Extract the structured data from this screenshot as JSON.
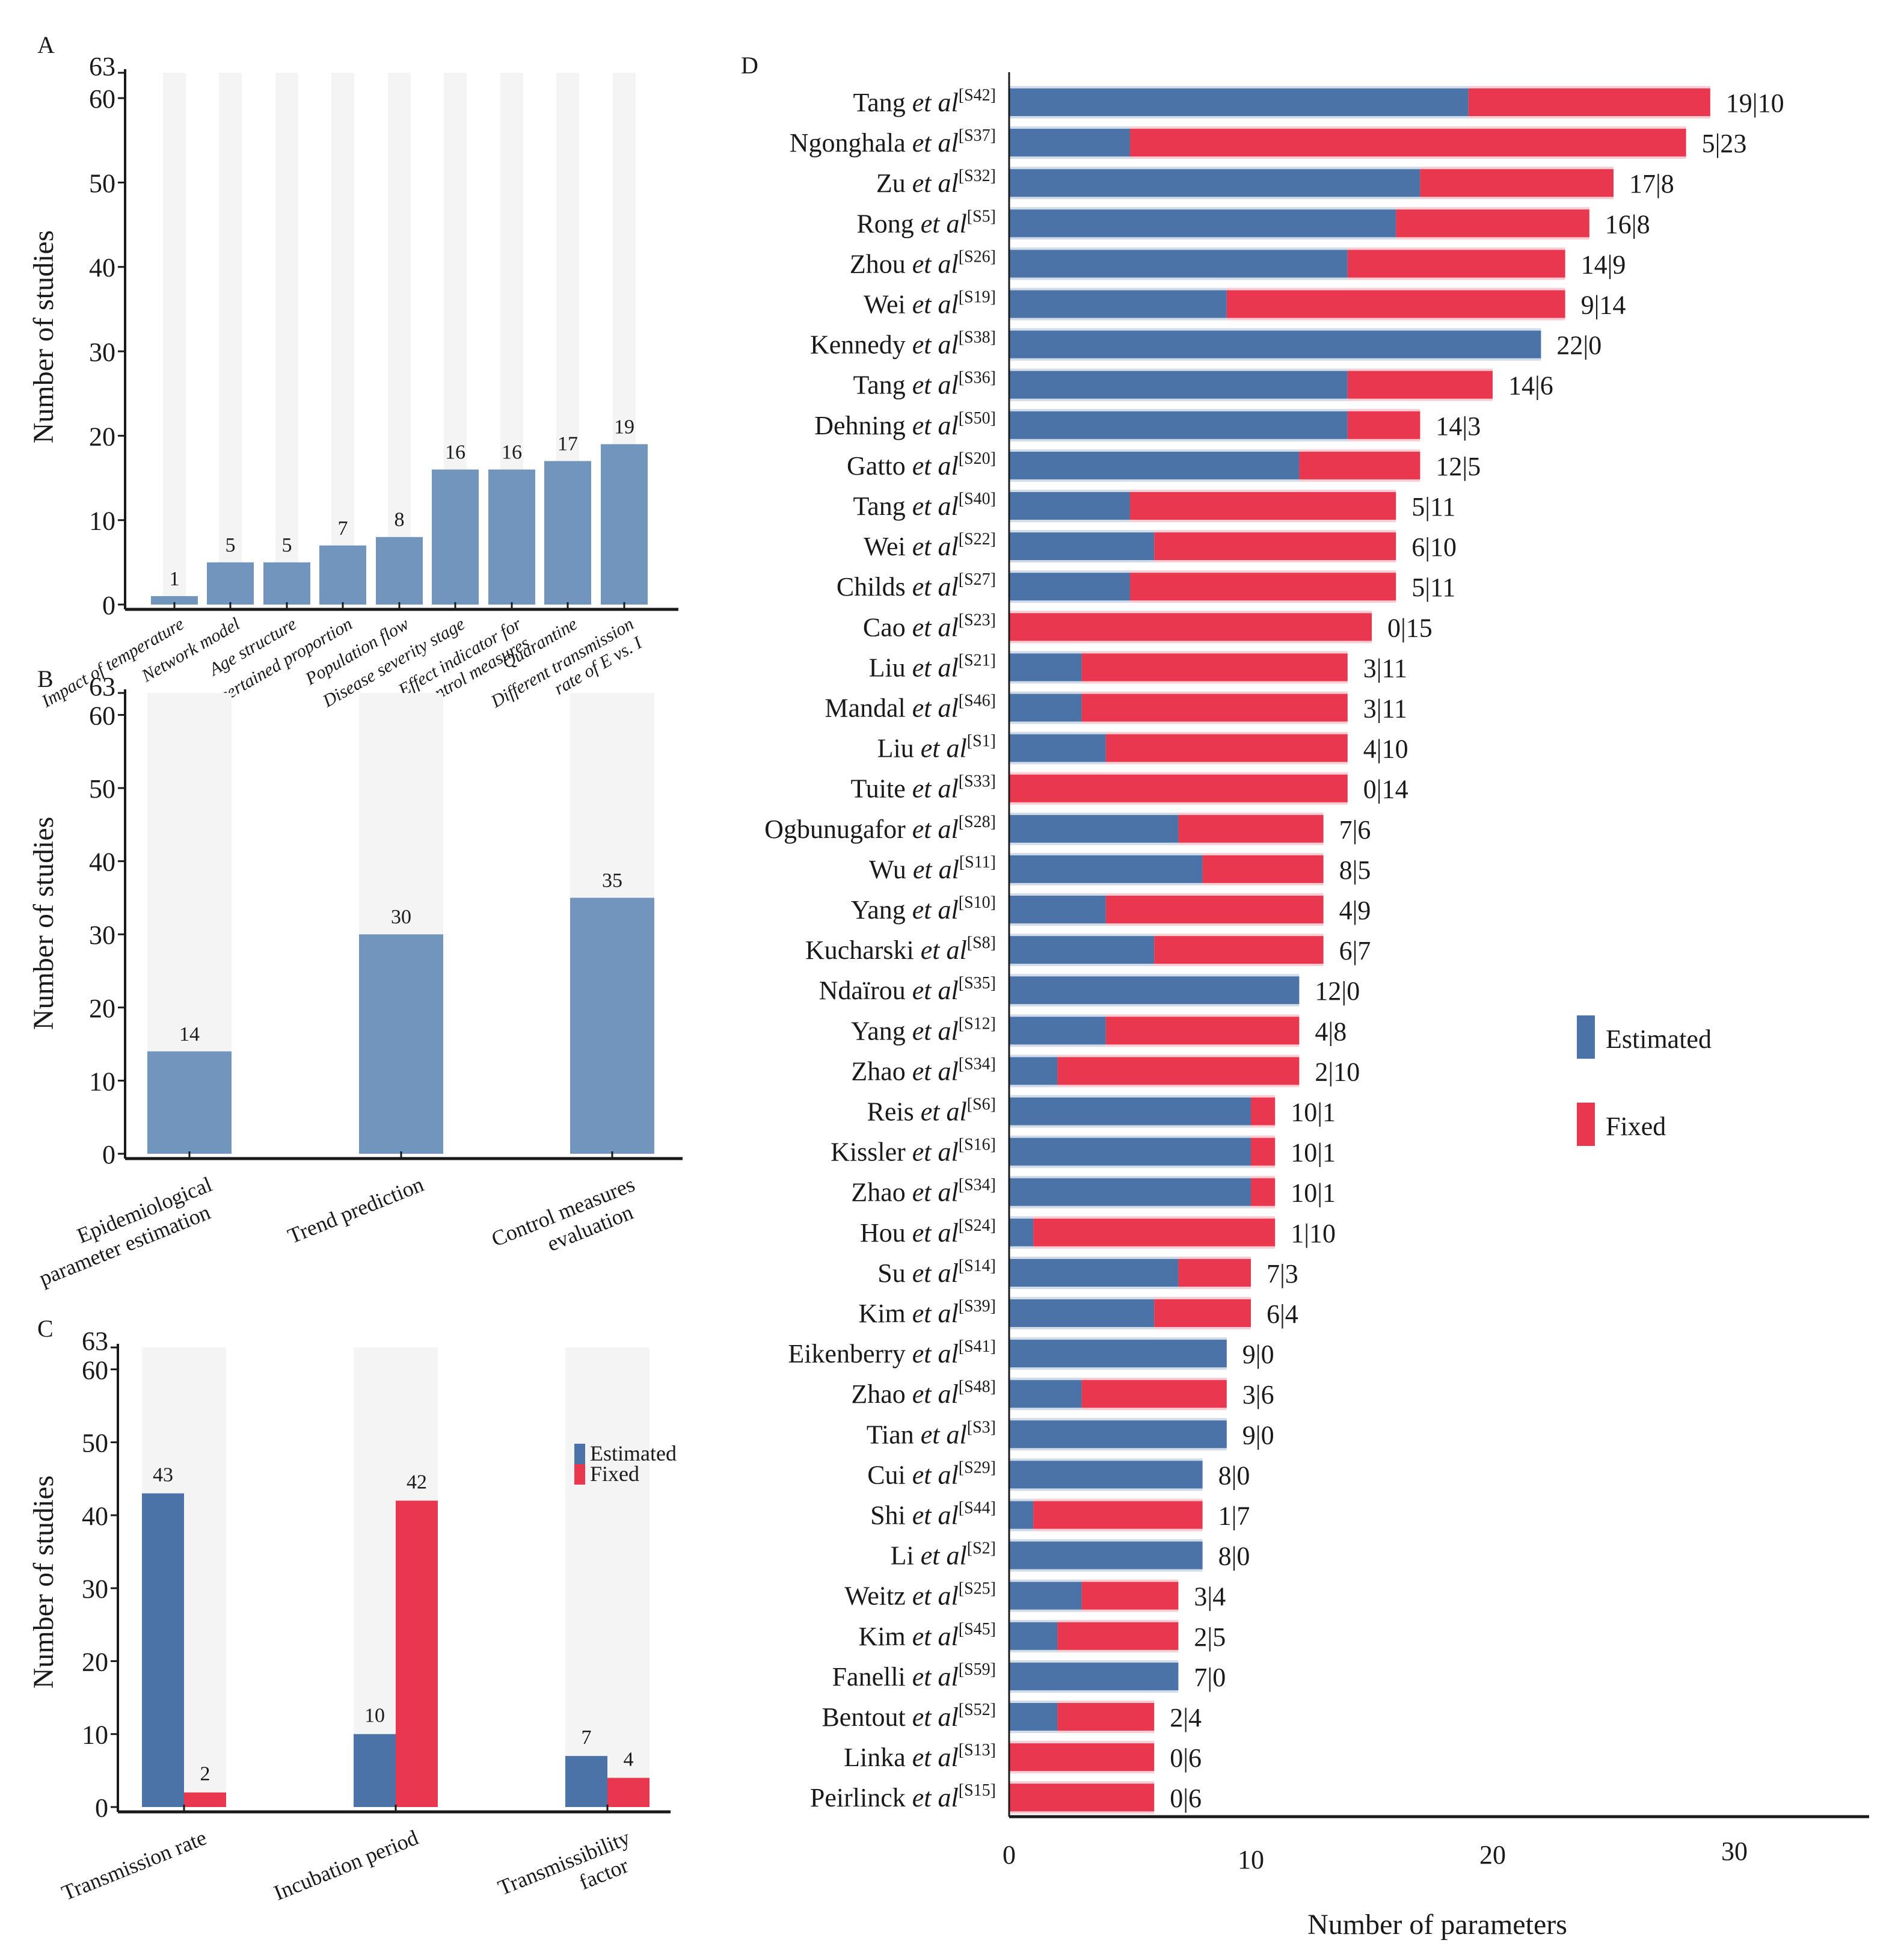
{
  "colors": {
    "single_bar": "#7295bd",
    "estimated": "#4b73a8",
    "fixed": "#e8374f",
    "column_bg": "#f4f4f4",
    "axis": "#1a1a1a"
  },
  "chart_data": [
    {
      "panel": "A",
      "type": "bar",
      "title": "",
      "xlabel": "",
      "ylabel": "Number of studies",
      "ylim": [
        0,
        63
      ],
      "yticks": [
        0,
        10,
        20,
        30,
        40,
        50,
        60,
        63
      ],
      "background_columns_to": 63,
      "categories": [
        "Impact of temperature",
        "Network model",
        "Age structure",
        "Unascertained proportion",
        "Population flow",
        "Disease severity stage",
        "Effect indicator for|control measures",
        "Quarantine",
        "Different transmission|rate of E vs. I"
      ],
      "values": [
        1,
        5,
        5,
        7,
        8,
        16,
        16,
        17,
        19
      ],
      "data_labels": [
        "1",
        "5",
        "5",
        "7",
        "8",
        "16",
        "16",
        "17",
        "19"
      ]
    },
    {
      "panel": "B",
      "type": "bar",
      "title": "",
      "xlabel": "",
      "ylabel": "Number of studies",
      "ylim": [
        0,
        63
      ],
      "yticks": [
        0,
        10,
        20,
        30,
        40,
        50,
        60,
        63
      ],
      "background_columns_to": 63,
      "categories": [
        "Epidemiological|parameter estimation",
        "Trend prediction",
        "Control measures|evaluation"
      ],
      "values": [
        14,
        30,
        35
      ],
      "data_labels": [
        "14",
        "30",
        "35"
      ]
    },
    {
      "panel": "C",
      "type": "bar",
      "title": "",
      "xlabel": "",
      "ylabel": "Number of studies",
      "ylim": [
        0,
        63
      ],
      "yticks": [
        0,
        10,
        20,
        30,
        40,
        50,
        60,
        63
      ],
      "background_columns_to": 63,
      "categories": [
        "Transmission rate",
        "Incubation period",
        "Transmissibility|factor"
      ],
      "series": [
        {
          "name": "Estimated",
          "values": [
            43,
            10,
            7
          ],
          "data_labels": [
            "43",
            "10",
            "7"
          ]
        },
        {
          "name": "Fixed",
          "values": [
            2,
            42,
            4
          ],
          "data_labels": [
            "2",
            "42",
            "4"
          ]
        }
      ],
      "legend": {
        "entries": [
          "Estimated",
          "Fixed"
        ],
        "placement": "top-right"
      }
    },
    {
      "panel": "D",
      "type": "bar",
      "orientation": "horizontal",
      "stacked": true,
      "title": "",
      "xlabel": "Number of parameters",
      "ylabel": "",
      "xlim": [
        0,
        35
      ],
      "xticks": [
        0,
        10,
        20,
        30
      ],
      "legend": {
        "entries": [
          "Estimated",
          "Fixed"
        ],
        "placement": "center-right"
      },
      "studies": [
        {
          "author": "Tang",
          "ref": "[S42]",
          "estimated": 19,
          "fixed": 10
        },
        {
          "author": "Ngonghala",
          "ref": "[S37]",
          "estimated": 5,
          "fixed": 23
        },
        {
          "author": "Zu",
          "ref": "[S32]",
          "estimated": 17,
          "fixed": 8
        },
        {
          "author": "Rong",
          "ref": "[S5]",
          "estimated": 16,
          "fixed": 8
        },
        {
          "author": "Zhou",
          "ref": "[S26]",
          "estimated": 14,
          "fixed": 9
        },
        {
          "author": "Wei",
          "ref": "[S19]",
          "estimated": 9,
          "fixed": 14
        },
        {
          "author": "Kennedy",
          "ref": "[S38]",
          "estimated": 22,
          "fixed": 0
        },
        {
          "author": "Tang",
          "ref": "[S36]",
          "estimated": 14,
          "fixed": 6
        },
        {
          "author": "Dehning",
          "ref": "[S50]",
          "estimated": 14,
          "fixed": 3
        },
        {
          "author": "Gatto",
          "ref": "[S20]",
          "estimated": 12,
          "fixed": 5
        },
        {
          "author": "Tang",
          "ref": "[S40]",
          "estimated": 5,
          "fixed": 11
        },
        {
          "author": "Wei",
          "ref": "[S22]",
          "estimated": 6,
          "fixed": 10
        },
        {
          "author": "Childs",
          "ref": "[S27]",
          "estimated": 5,
          "fixed": 11
        },
        {
          "author": "Cao",
          "ref": "[S23]",
          "estimated": 0,
          "fixed": 15
        },
        {
          "author": "Liu",
          "ref": "[S21]",
          "estimated": 3,
          "fixed": 11
        },
        {
          "author": "Mandal",
          "ref": "[S46]",
          "estimated": 3,
          "fixed": 11
        },
        {
          "author": "Liu",
          "ref": "[S1]",
          "estimated": 4,
          "fixed": 10
        },
        {
          "author": "Tuite",
          "ref": "[S33]",
          "estimated": 0,
          "fixed": 14
        },
        {
          "author": "Ogbunugafor",
          "ref": "[S28]",
          "estimated": 7,
          "fixed": 6
        },
        {
          "author": "Wu",
          "ref": "[S11]",
          "estimated": 8,
          "fixed": 5
        },
        {
          "author": "Yang",
          "ref": "[S10]",
          "estimated": 4,
          "fixed": 9
        },
        {
          "author": "Kucharski",
          "ref": "[S8]",
          "estimated": 6,
          "fixed": 7
        },
        {
          "author": "Ndaïrou",
          "ref": "[S35]",
          "estimated": 12,
          "fixed": 0
        },
        {
          "author": "Yang",
          "ref": "[S12]",
          "estimated": 4,
          "fixed": 8
        },
        {
          "author": "Zhao",
          "ref": "[S34]",
          "estimated": 2,
          "fixed": 10
        },
        {
          "author": "Reis",
          "ref": "[S6]",
          "estimated": 10,
          "fixed": 1
        },
        {
          "author": "Kissler",
          "ref": "[S16]",
          "estimated": 10,
          "fixed": 1
        },
        {
          "author": "Zhao",
          "ref": "[S34]",
          "estimated": 10,
          "fixed": 1
        },
        {
          "author": "Hou",
          "ref": "[S24]",
          "estimated": 1,
          "fixed": 10
        },
        {
          "author": "Su",
          "ref": "[S14]",
          "estimated": 7,
          "fixed": 3
        },
        {
          "author": "Kim",
          "ref": "[S39]",
          "estimated": 6,
          "fixed": 4
        },
        {
          "author": "Eikenberry",
          "ref": "[S41]",
          "estimated": 9,
          "fixed": 0
        },
        {
          "author": "Zhao",
          "ref": "[S48]",
          "estimated": 3,
          "fixed": 6
        },
        {
          "author": "Tian",
          "ref": "[S3]",
          "estimated": 9,
          "fixed": 0
        },
        {
          "author": "Cui",
          "ref": "[S29]",
          "estimated": 8,
          "fixed": 0
        },
        {
          "author": "Shi",
          "ref": "[S44]",
          "estimated": 1,
          "fixed": 7
        },
        {
          "author": "Li",
          "ref": "[S2]",
          "estimated": 8,
          "fixed": 0
        },
        {
          "author": "Weitz",
          "ref": "[S25]",
          "estimated": 3,
          "fixed": 4
        },
        {
          "author": "Kim",
          "ref": "[S45]",
          "estimated": 2,
          "fixed": 5
        },
        {
          "author": "Fanelli",
          "ref": "[S59]",
          "estimated": 7,
          "fixed": 0
        },
        {
          "author": "Bentout",
          "ref": "[S52]",
          "estimated": 2,
          "fixed": 4
        },
        {
          "author": "Linka",
          "ref": "[S13]",
          "estimated": 0,
          "fixed": 6
        },
        {
          "author": "Peirlinck",
          "ref": "[S15]",
          "estimated": 0,
          "fixed": 6
        }
      ],
      "et_al_text": "et al"
    }
  ],
  "panels": {
    "A": {
      "letter": "A"
    },
    "B": {
      "letter": "B"
    },
    "C": {
      "letter": "C"
    },
    "D": {
      "letter": "D"
    }
  }
}
